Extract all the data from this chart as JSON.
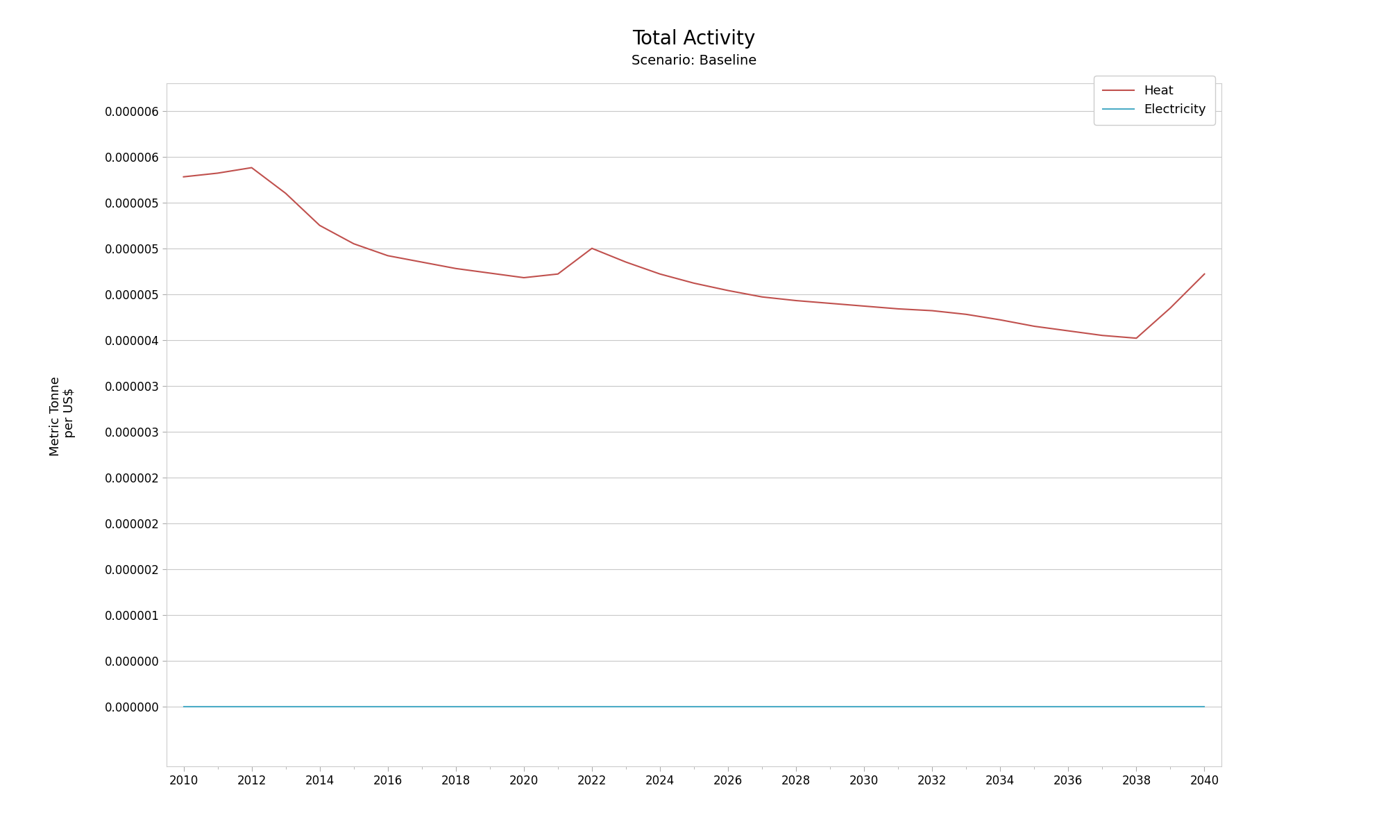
{
  "title": "Total Activity",
  "subtitle": "Scenario: Baseline",
  "ylabel_line1": "Metric Tonne",
  "ylabel_line2": "  per US$",
  "years": [
    2010,
    2011,
    2012,
    2013,
    2014,
    2015,
    2016,
    2017,
    2018,
    2019,
    2020,
    2021,
    2022,
    2023,
    2024,
    2025,
    2026,
    2027,
    2028,
    2029,
    2030,
    2031,
    2032,
    2033,
    2034,
    2035,
    2036,
    2037,
    2038,
    2039,
    2040
  ],
  "heat_values": [
    5.78e-06,
    5.82e-06,
    5.88e-06,
    5.6e-06,
    5.25e-06,
    5.05e-06,
    4.92e-06,
    4.85e-06,
    4.78e-06,
    4.73e-06,
    4.68e-06,
    4.72e-06,
    5e-06,
    4.85e-06,
    4.72e-06,
    4.62e-06,
    4.54e-06,
    4.47e-06,
    4.43e-06,
    4.4e-06,
    4.37e-06,
    4.34e-06,
    4.32e-06,
    4.28e-06,
    4.22e-06,
    4.15e-06,
    4.1e-06,
    4.05e-06,
    4.02e-06,
    4.35e-06,
    4.72e-06
  ],
  "electricity_values": [
    2e-09,
    2e-09,
    2e-09,
    2e-09,
    2e-09,
    2e-09,
    2e-09,
    2e-09,
    2e-09,
    2e-09,
    2e-09,
    2e-09,
    2e-09,
    2e-09,
    2e-09,
    2e-09,
    2e-09,
    2e-09,
    2e-09,
    2e-09,
    2e-09,
    2e-09,
    2e-09,
    2e-09,
    2e-09,
    2e-09,
    2e-09,
    2e-09,
    2e-09,
    2e-09,
    2e-09
  ],
  "heat_color": "#c0504d",
  "electricity_color": "#4bacc6",
  "background_color": "#ffffff",
  "plot_bg_color": "#ffffff",
  "grid_color": "#c8c8c8",
  "ylim_min": -6.5e-07,
  "ylim_max": 6.8e-06,
  "xlim_min": 2009.5,
  "xlim_max": 2040.5,
  "legend_labels": [
    "Heat",
    "Electricity"
  ],
  "title_fontsize": 20,
  "subtitle_fontsize": 14,
  "label_fontsize": 13,
  "tick_fontsize": 12
}
